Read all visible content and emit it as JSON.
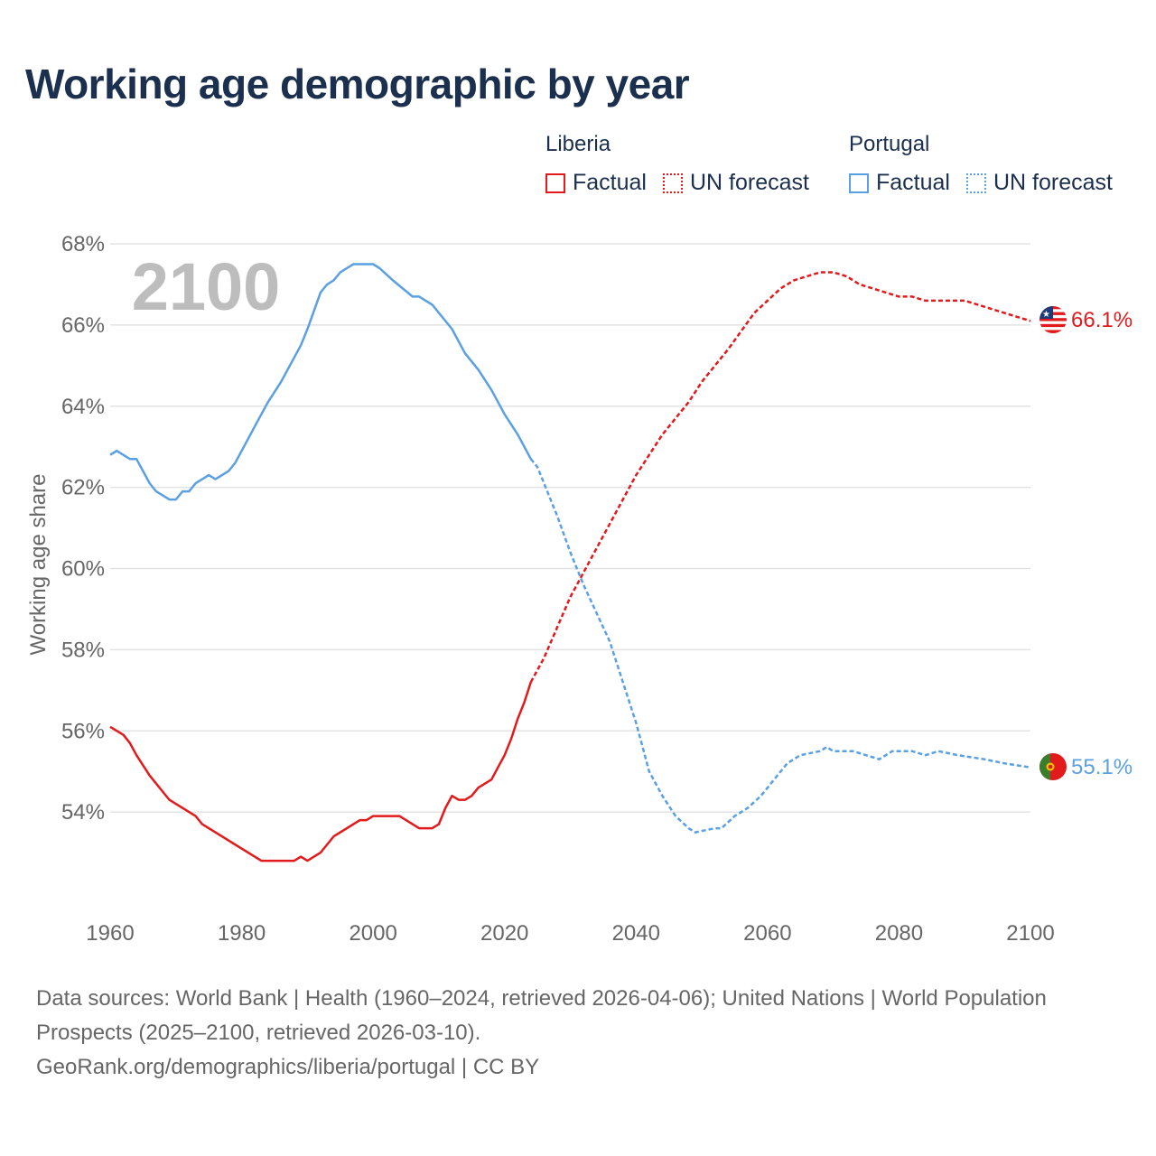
{
  "title": "Working age demographic by year",
  "legend": {
    "groups": [
      {
        "country": "Liberia",
        "color": "#e31a1c",
        "factual_label": "Factual",
        "forecast_label": "UN forecast"
      },
      {
        "country": "Portugal",
        "color": "#5aa0e2",
        "factual_label": "Factual",
        "forecast_label": "UN forecast"
      }
    ]
  },
  "sources": {
    "line1": "Data sources: World Bank | Health (1960–2024, retrieved 2026-04-06); United Nations | World Population Prospects (2025–2100, retrieved 2026-03-10).",
    "line2": "GeoRank.org/demographics/liberia/portugal | CC BY"
  },
  "chart_data": {
    "type": "line",
    "title": "Working age demographic by year",
    "ylabel": "Working age share",
    "xlabel": "",
    "year_watermark": "2100",
    "xlim": [
      1960,
      2100
    ],
    "ylim": [
      52,
      68
    ],
    "x_ticks": [
      1960,
      1980,
      2000,
      2020,
      2040,
      2060,
      2080,
      2100
    ],
    "y_ticks": [
      54,
      56,
      58,
      60,
      62,
      64,
      66,
      68
    ],
    "y_tick_labels": [
      "54%",
      "56%",
      "58%",
      "60%",
      "62%",
      "64%",
      "66%",
      "68%"
    ],
    "grid": true,
    "series": [
      {
        "name": "Liberia",
        "color": "#e31a1c",
        "end_label": "66.1%",
        "factual": {
          "x": [
            1960,
            1962,
            1963,
            1964,
            1966,
            1969,
            1973,
            1974,
            1978,
            1983,
            1988,
            1989,
            1990,
            1992,
            1994,
            1998,
            1999,
            2000,
            2001,
            2004,
            2007,
            2009,
            2010,
            2011,
            2012,
            2013,
            2014,
            2015,
            2016,
            2017,
            2018,
            2019,
            2020,
            2021,
            2022,
            2023,
            2024
          ],
          "y": [
            56.1,
            55.9,
            55.7,
            55.4,
            54.9,
            54.3,
            53.9,
            53.7,
            53.3,
            52.8,
            52.8,
            52.9,
            52.8,
            53.0,
            53.4,
            53.8,
            53.8,
            53.9,
            53.9,
            53.9,
            53.6,
            53.6,
            53.7,
            54.1,
            54.4,
            54.3,
            54.3,
            54.4,
            54.6,
            54.7,
            54.8,
            55.1,
            55.4,
            55.8,
            56.3,
            56.7,
            57.2
          ]
        },
        "forecast": {
          "x": [
            2024,
            2026,
            2030,
            2032,
            2034,
            2038,
            2040,
            2044,
            2048,
            2050,
            2054,
            2058,
            2062,
            2064,
            2066,
            2068,
            2070,
            2072,
            2074,
            2076,
            2078,
            2080,
            2082,
            2084,
            2086,
            2088,
            2090,
            2092,
            2094,
            2096,
            2098,
            2100
          ],
          "y": [
            57.2,
            57.8,
            59.3,
            59.9,
            60.5,
            61.7,
            62.3,
            63.3,
            64.1,
            64.6,
            65.4,
            66.3,
            66.9,
            67.1,
            67.2,
            67.3,
            67.3,
            67.2,
            67.0,
            66.9,
            66.8,
            66.7,
            66.7,
            66.6,
            66.6,
            66.6,
            66.6,
            66.5,
            66.4,
            66.3,
            66.2,
            66.1
          ]
        }
      },
      {
        "name": "Portugal",
        "color": "#5aa0e2",
        "end_label": "55.1%",
        "factual": {
          "x": [
            1960,
            1961,
            1963,
            1964,
            1966,
            1967,
            1969,
            1970,
            1971,
            1972,
            1973,
            1975,
            1976,
            1978,
            1979,
            1980,
            1982,
            1984,
            1986,
            1987,
            1989,
            1990,
            1992,
            1993,
            1994,
            1995,
            1996,
            1997,
            1999,
            2000,
            2001,
            2003,
            2006,
            2007,
            2009,
            2012,
            2014,
            2016,
            2018,
            2020,
            2022,
            2024
          ],
          "y": [
            62.8,
            62.9,
            62.7,
            62.7,
            62.1,
            61.9,
            61.7,
            61.7,
            61.9,
            61.9,
            62.1,
            62.3,
            62.2,
            62.4,
            62.6,
            62.9,
            63.5,
            64.1,
            64.6,
            64.9,
            65.5,
            65.9,
            66.8,
            67.0,
            67.1,
            67.3,
            67.4,
            67.5,
            67.5,
            67.5,
            67.4,
            67.1,
            66.7,
            66.7,
            66.5,
            65.9,
            65.3,
            64.9,
            64.4,
            63.8,
            63.3,
            62.7
          ]
        },
        "forecast": {
          "x": [
            2024,
            2025,
            2028,
            2030,
            2032,
            2034,
            2036,
            2038,
            2040,
            2042,
            2044,
            2046,
            2048,
            2049,
            2052,
            2053,
            2055,
            2057,
            2059,
            2061,
            2063,
            2065,
            2068,
            2069,
            2070,
            2073,
            2075,
            2077,
            2079,
            2082,
            2084,
            2086,
            2089,
            2093,
            2096,
            2100
          ],
          "y": [
            62.7,
            62.5,
            61.3,
            60.4,
            59.6,
            58.9,
            58.2,
            57.2,
            56.2,
            55.0,
            54.4,
            53.9,
            53.6,
            53.5,
            53.6,
            53.6,
            53.9,
            54.1,
            54.4,
            54.8,
            55.2,
            55.4,
            55.5,
            55.6,
            55.5,
            55.5,
            55.4,
            55.3,
            55.5,
            55.5,
            55.4,
            55.5,
            55.4,
            55.3,
            55.2,
            55.1
          ]
        }
      }
    ]
  }
}
